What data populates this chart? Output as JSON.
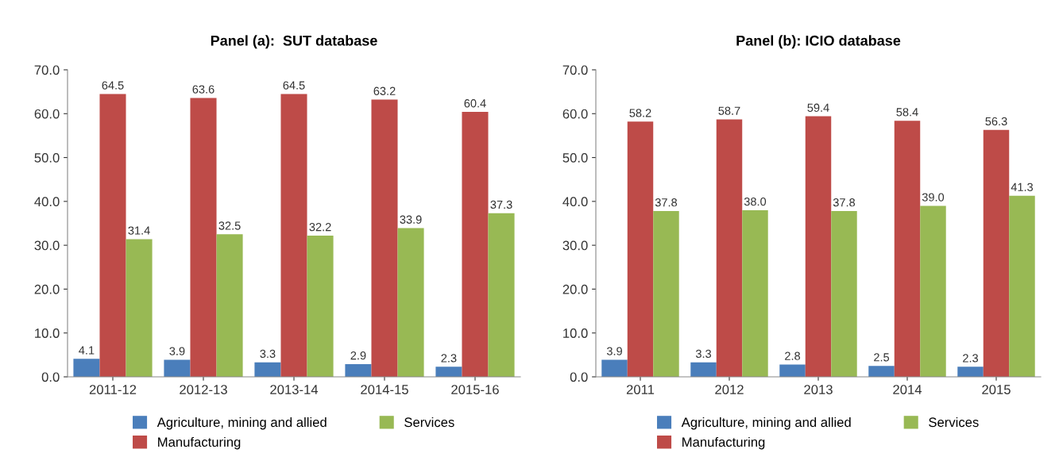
{
  "chart_data": [
    {
      "type": "bar",
      "title": "Panel (a):  SUT database",
      "categories": [
        "2011-12",
        "2012-13",
        "2013-14",
        "2014-15",
        "2015-16"
      ],
      "ylim": [
        0,
        70
      ],
      "yticks": [
        {
          "value": 0,
          "label": "0.0"
        },
        {
          "value": 10,
          "label": "10.0"
        },
        {
          "value": 20,
          "label": "20.0"
        },
        {
          "value": 30,
          "label": "30.0"
        },
        {
          "value": 40,
          "label": "40.0"
        },
        {
          "value": 50,
          "label": "50.0"
        },
        {
          "value": 60,
          "label": "60.0"
        },
        {
          "value": 70,
          "label": "70.0"
        }
      ],
      "grid": false,
      "legend": "bottom",
      "series": [
        {
          "name": "Agriculture, mining and allied",
          "color": "#4a7ebb",
          "values": [
            4.1,
            3.9,
            3.3,
            2.9,
            2.3
          ],
          "value_labels": [
            "4.1",
            "3.9",
            "3.3",
            "2.9",
            "2.3"
          ]
        },
        {
          "name": "Manufacturing",
          "color": "#be4b48",
          "values": [
            64.5,
            63.6,
            64.5,
            63.2,
            60.4
          ],
          "value_labels": [
            "64.5",
            "63.6",
            "64.5",
            "63.2",
            "60.4"
          ]
        },
        {
          "name": "Services",
          "color": "#98b954",
          "values": [
            31.4,
            32.5,
            32.2,
            33.9,
            37.3
          ],
          "value_labels": [
            "31.4",
            "32.5",
            "32.2",
            "33.9",
            "37.3"
          ]
        }
      ]
    },
    {
      "type": "bar",
      "title": "Panel (b): ICIO database",
      "categories": [
        "2011",
        "2012",
        "2013",
        "2014",
        "2015"
      ],
      "ylim": [
        0,
        70
      ],
      "yticks": [
        {
          "value": 0,
          "label": "0.0"
        },
        {
          "value": 10,
          "label": "10.0"
        },
        {
          "value": 20,
          "label": "20.0"
        },
        {
          "value": 30,
          "label": "30.0"
        },
        {
          "value": 40,
          "label": "40.0"
        },
        {
          "value": 50,
          "label": "50.0"
        },
        {
          "value": 60,
          "label": "60.0"
        },
        {
          "value": 70,
          "label": "70.0"
        }
      ],
      "grid": false,
      "legend": "bottom",
      "series": [
        {
          "name": "Agriculture, mining and allied",
          "color": "#4a7ebb",
          "values": [
            3.9,
            3.3,
            2.8,
            2.5,
            2.3
          ],
          "value_labels": [
            "3.9",
            "3.3",
            "2.8",
            "2.5",
            "2.3"
          ]
        },
        {
          "name": "Manufacturing",
          "color": "#be4b48",
          "values": [
            58.2,
            58.7,
            59.4,
            58.4,
            56.3
          ],
          "value_labels": [
            "58.2",
            "58.7",
            "59.4",
            "58.4",
            "56.3"
          ]
        },
        {
          "name": "Services",
          "color": "#98b954",
          "values": [
            37.8,
            38.0,
            37.8,
            39.0,
            41.3
          ],
          "value_labels": [
            "37.8",
            "38.0",
            "37.8",
            "39.0",
            "41.3"
          ]
        }
      ]
    }
  ]
}
